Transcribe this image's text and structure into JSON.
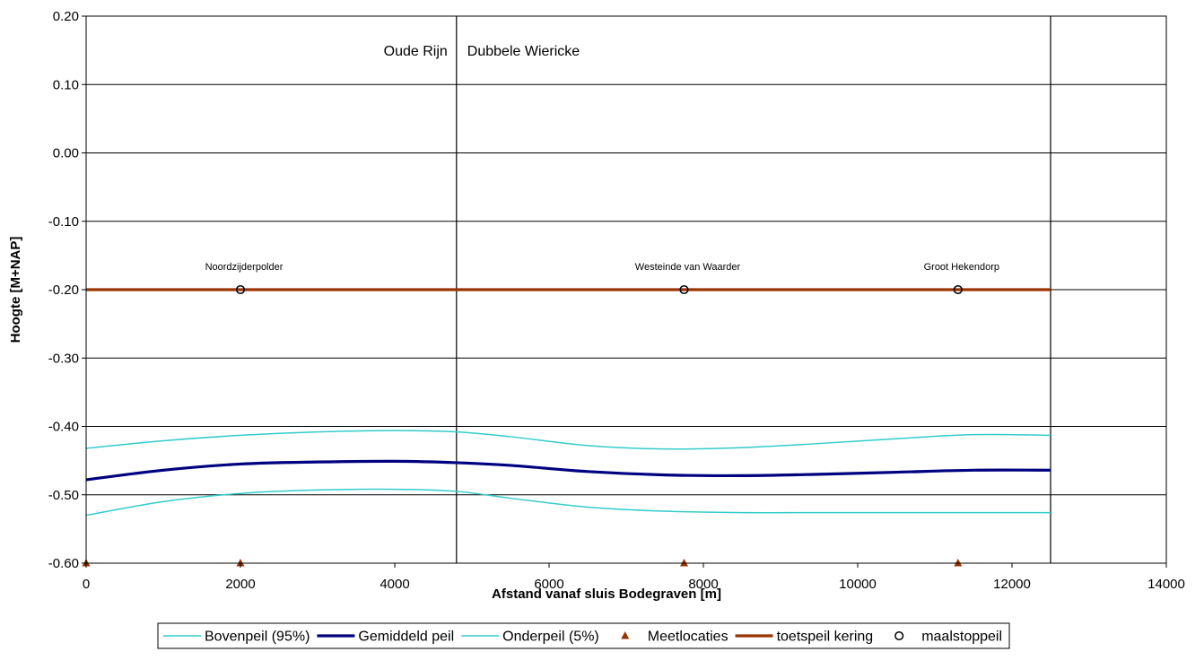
{
  "chart_data": {
    "type": "line",
    "xlabel": "Afstand vanaf sluis Bodegraven [m]",
    "ylabel": "Hoogte [M+NAP]",
    "xlim": [
      0,
      14000
    ],
    "ylim": [
      -0.6,
      0.2
    ],
    "x_ticks": [
      0,
      2000,
      4000,
      6000,
      8000,
      10000,
      12000,
      14000
    ],
    "y_ticks": [
      0.2,
      0.1,
      0.0,
      -0.1,
      -0.2,
      -0.3,
      -0.4,
      -0.5,
      -0.6
    ],
    "y_tick_labels": [
      "0.20",
      "0.10",
      "0.00",
      "-0.10",
      "-0.20",
      "-0.30",
      "-0.40",
      "-0.50",
      "-0.60"
    ],
    "grid": "horizontal",
    "legend_position": "bottom",
    "vertical_lines": [
      {
        "x": 4800
      },
      {
        "x": 12500
      }
    ],
    "region_labels": [
      {
        "text": "Oude Rijn",
        "x": 4800,
        "y": 0.15,
        "side": "left"
      },
      {
        "text": "Dubbele Wiericke",
        "x": 4800,
        "y": 0.15,
        "side": "right"
      }
    ],
    "series": [
      {
        "name": "Bovenpeil (95%)",
        "kind": "line",
        "color": "#33CCCC",
        "width": "thin",
        "x": [
          0,
          1000,
          2000,
          3000,
          4000,
          4800,
          5500,
          6500,
          7500,
          8500,
          9500,
          10500,
          11500,
          12500
        ],
        "y": [
          -0.432,
          -0.421,
          -0.413,
          -0.408,
          -0.406,
          -0.408,
          -0.415,
          -0.428,
          -0.433,
          -0.431,
          -0.425,
          -0.418,
          -0.412,
          -0.413
        ]
      },
      {
        "name": "Gemiddeld peil",
        "kind": "line",
        "color": "#000080",
        "width": "thick",
        "x": [
          0,
          1000,
          2000,
          3000,
          4000,
          4800,
          5500,
          6500,
          7500,
          8500,
          9500,
          10500,
          11500,
          12500
        ],
        "y": [
          -0.478,
          -0.464,
          -0.455,
          -0.452,
          -0.451,
          -0.453,
          -0.457,
          -0.466,
          -0.471,
          -0.472,
          -0.47,
          -0.467,
          -0.464,
          -0.464
        ]
      },
      {
        "name": "Onderpeil (5%)",
        "kind": "line",
        "color": "#33CCCC",
        "width": "thin",
        "x": [
          0,
          1000,
          2000,
          3000,
          4000,
          4800,
          5500,
          6500,
          7500,
          8500,
          9500,
          10500,
          11500,
          12500
        ],
        "y": [
          -0.53,
          -0.51,
          -0.498,
          -0.493,
          -0.492,
          -0.495,
          -0.505,
          -0.518,
          -0.524,
          -0.526,
          -0.526,
          -0.526,
          -0.526,
          -0.526
        ]
      },
      {
        "name": "Meetlocaties",
        "kind": "marker-triangle",
        "color": "#993300",
        "x": [
          0,
          2000,
          7750,
          11300
        ],
        "y": [
          -0.6,
          -0.6,
          -0.6,
          -0.6
        ]
      },
      {
        "name": "toetspeil kering",
        "kind": "line",
        "color": "#993300",
        "width": "thick",
        "x": [
          0,
          12500
        ],
        "y": [
          -0.2,
          -0.2
        ]
      },
      {
        "name": "maalstoppeil",
        "kind": "marker-circle",
        "color": "#000000",
        "x": [
          2000,
          7750,
          11300
        ],
        "y": [
          -0.2,
          -0.2,
          -0.2
        ]
      }
    ],
    "annotations": [
      {
        "text": "Noordzijderpolder",
        "x": 2000,
        "y": -0.2
      },
      {
        "text": "Westeinde van Waarder",
        "x": 7750,
        "y": -0.2
      },
      {
        "text": "Groot Hekendorp",
        "x": 11300,
        "y": -0.2
      }
    ]
  }
}
